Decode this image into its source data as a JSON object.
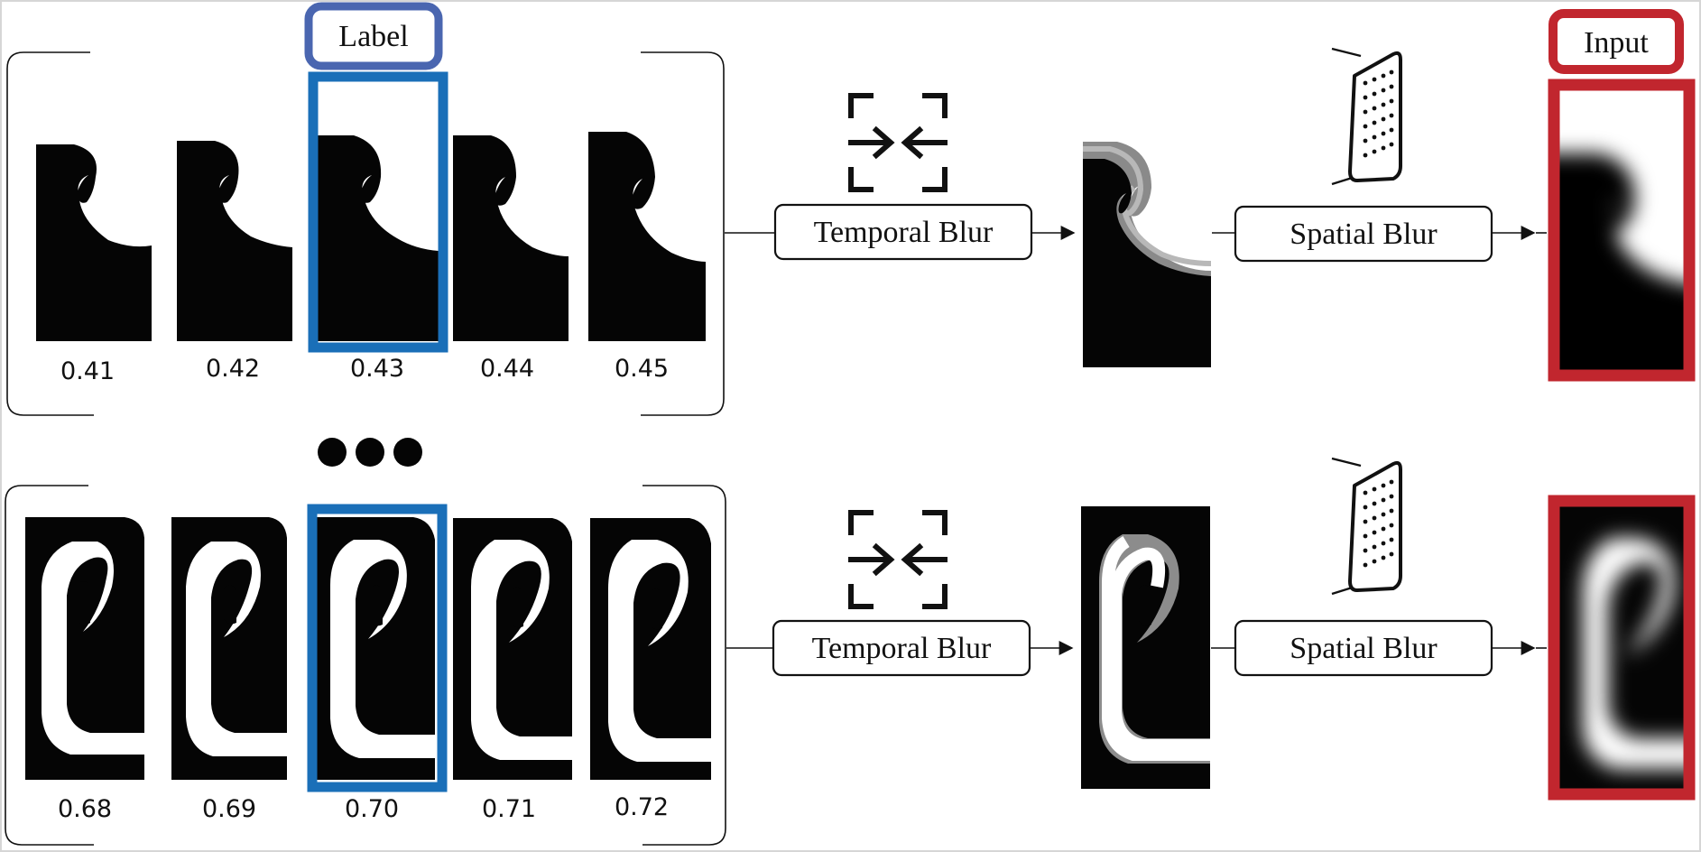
{
  "badges": {
    "label": "Label",
    "input": "Input"
  },
  "colors": {
    "label_blue": "#1a6fb8",
    "label_badge": "#4a66b0",
    "input_red": "#c1262e",
    "ink": "#050505"
  },
  "rows": [
    {
      "id": "top",
      "frame_values": [
        "0.41",
        "0.42",
        "0.43",
        "0.44",
        "0.45"
      ],
      "selected_index": 2,
      "temporal_label": "Temporal Blur",
      "spatial_label": "Spatial Blur"
    },
    {
      "id": "bottom",
      "frame_values": [
        "0.68",
        "0.69",
        "0.70",
        "0.71",
        "0.72"
      ],
      "selected_index": 2,
      "temporal_label": "Temporal Blur",
      "spatial_label": "Spatial Blur"
    }
  ],
  "icons": {
    "compress": "compress-arrows-icon",
    "sensor": "sensor-array-icon",
    "ellipsis": "ellipsis-dots-icon"
  }
}
